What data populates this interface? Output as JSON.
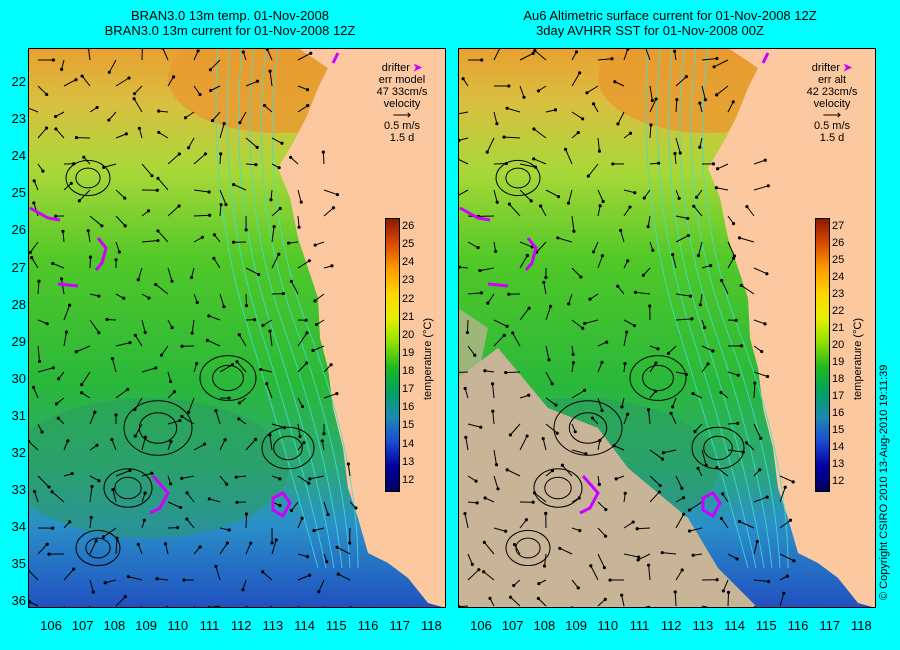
{
  "left_panel": {
    "title_line1": "BRAN3.0 13m temp. 01-Nov-2008",
    "title_line2": "BRAN3.0 13m current for 01-Nov-2008 12Z",
    "legend": {
      "drifter": "drifter",
      "err_label": "err model",
      "err_value": "47 33cm/s",
      "velocity": "velocity",
      "vel_scale": "0.5 m/s",
      "vel_time": "1.5 d"
    }
  },
  "right_panel": {
    "title_line1": "Au6 Altimetric surface current for 01-Nov-2008 12Z",
    "title_line2": "3day AVHRR SST for 01-Nov-2008 00Z",
    "legend": {
      "drifter": "drifter",
      "err_label": "err alt",
      "err_value": "42 23cm/s",
      "velocity": "velocity",
      "vel_scale": "0.5 m/s",
      "vel_time": "1.5 d"
    }
  },
  "lat_labels": [
    "22",
    "23",
    "24",
    "25",
    "26",
    "27",
    "28",
    "29",
    "30",
    "31",
    "32",
    "33",
    "34",
    "35",
    "36"
  ],
  "lon_labels": [
    "106",
    "107",
    "108",
    "109",
    "110",
    "111",
    "112",
    "113",
    "114",
    "115",
    "116",
    "117",
    "118"
  ],
  "left_colorbar": {
    "ticks": [
      "26",
      "25",
      "24",
      "23",
      "22",
      "21",
      "20",
      "19",
      "18",
      "17",
      "16",
      "15",
      "14",
      "13",
      "12"
    ],
    "title": "temperature (°C)"
  },
  "right_colorbar": {
    "ticks": [
      "27",
      "26",
      "25",
      "24",
      "23",
      "22",
      "21",
      "20",
      "19",
      "18",
      "17",
      "16",
      "15",
      "14",
      "13",
      "12"
    ],
    "title": "temperature (°C)"
  },
  "copyright": "© Copyright CSIRO 2010   13-Aug-2010 19:11:39",
  "colors": {
    "background": "#00ffff",
    "land": "#fbc8a0",
    "drifter": "#cc00ff",
    "contour": "#40e0d0",
    "cloud": "#c8b496"
  }
}
